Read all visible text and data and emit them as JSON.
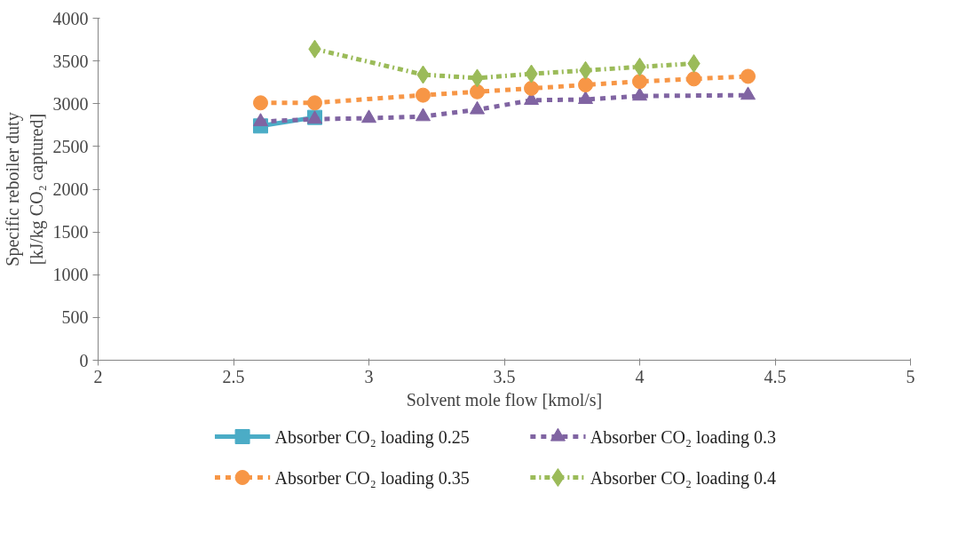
{
  "chart_data": {
    "type": "line",
    "xlabel": "Solvent mole flow [kmol/s]",
    "ylabel": "Specific reboiler duty\n[kJ/kg CO₂ captured]",
    "xlim": [
      2,
      5
    ],
    "xticks": [
      2,
      2.5,
      3,
      3.5,
      4,
      4.5,
      5
    ],
    "ylim": [
      0,
      4000
    ],
    "yticks": [
      0,
      500,
      1000,
      1500,
      2000,
      2500,
      3000,
      3500,
      4000
    ],
    "grid": false,
    "legend": "bottom",
    "series": [
      {
        "name": "Absorber CO₂ loading 0.25",
        "color": "#4bacc6",
        "marker": "square",
        "line_style": "solid",
        "x": [
          2.6,
          2.8
        ],
        "values": [
          2740,
          2840
        ]
      },
      {
        "name": "Absorber CO₂ loading 0.3",
        "color": "#8064a2",
        "marker": "triangle",
        "line_style": "dashed",
        "x": [
          2.6,
          2.8,
          3.0,
          3.2,
          3.4,
          3.6,
          3.8,
          4.0,
          4.4
        ],
        "values": [
          2790,
          2820,
          2830,
          2850,
          2930,
          3040,
          3050,
          3090,
          3100
        ]
      },
      {
        "name": "Absorber CO₂ loading 0.35",
        "color": "#f79646",
        "marker": "circle",
        "line_style": "dashed",
        "x": [
          2.6,
          2.8,
          3.2,
          3.4,
          3.6,
          3.8,
          4.0,
          4.2,
          4.4
        ],
        "values": [
          3010,
          3010,
          3100,
          3140,
          3180,
          3220,
          3260,
          3290,
          3320
        ]
      },
      {
        "name": "Absorber CO₂ loading 0.4",
        "color": "#9bbb59",
        "marker": "diamond",
        "line_style": "dashdot",
        "x": [
          2.8,
          3.2,
          3.4,
          3.6,
          3.8,
          4.0,
          4.2
        ],
        "values": [
          3640,
          3340,
          3300,
          3350,
          3390,
          3430,
          3470
        ]
      }
    ]
  }
}
